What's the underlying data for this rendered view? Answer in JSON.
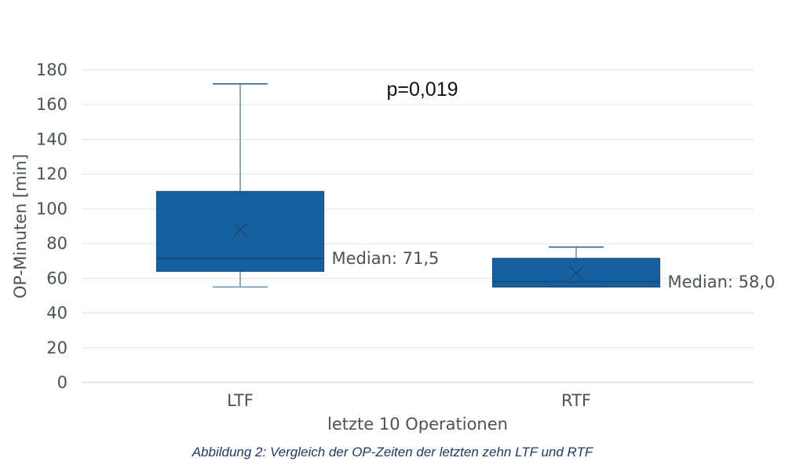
{
  "chart_data": {
    "type": "boxplot",
    "xlabel": "letzte 10 Operationen",
    "ylabel": "OP-Minuten [min]",
    "ylim": [
      0,
      180
    ],
    "yticks": [
      0,
      20,
      40,
      60,
      80,
      100,
      120,
      140,
      160,
      180
    ],
    "grid": true,
    "annotation": "p=0,019",
    "color": "#1660a0",
    "categories": [
      "LTF",
      "RTF"
    ],
    "boxes": [
      {
        "category": "LTF",
        "whisker_low": 55,
        "q1": 64,
        "median": 71.5,
        "q3": 110,
        "whisker_high": 172,
        "mean": 88,
        "label": "Median: 71,5"
      },
      {
        "category": "RTF",
        "whisker_low": 55,
        "q1": 55,
        "median": 58.0,
        "q3": 71.5,
        "whisker_high": 78,
        "mean": 63,
        "label": "Median: 58,0"
      }
    ]
  },
  "caption": "Abbildung 2: Vergleich der OP-Zeiten der letzten zehn LTF und RTF"
}
